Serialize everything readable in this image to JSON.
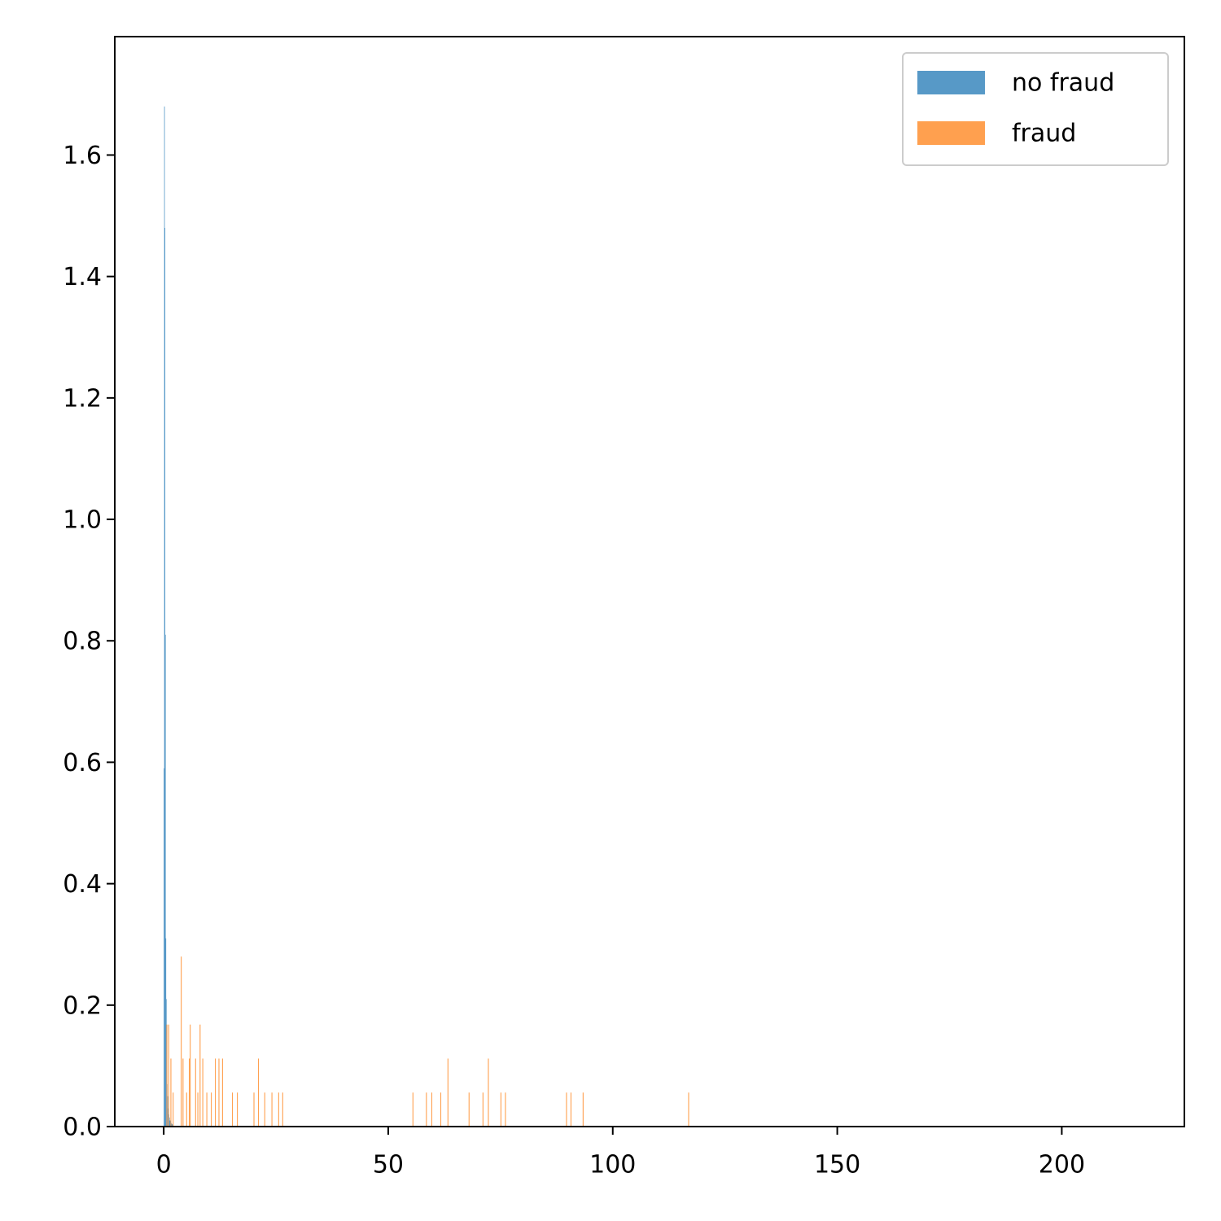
{
  "chart_data": {
    "type": "histogram",
    "series": [
      {
        "name": "no fraud",
        "color": "#5799c7",
        "bins": [
          0,
          0.1,
          0.2,
          0.3,
          0.4,
          0.5,
          0.6,
          0.7,
          0.8,
          0.9,
          1.0,
          1.1,
          1.2,
          1.3,
          1.4,
          1.5,
          1.6,
          1.7,
          1.8,
          1.9,
          2.0
        ],
        "values": [
          0.59,
          1.68,
          1.48,
          0.81,
          0.31,
          0.21,
          0.12,
          0.07,
          0.05,
          0.03,
          0.02,
          0.02,
          0.015,
          0.01,
          0.01,
          0.008,
          0.006,
          0.005,
          0.004,
          0.003
        ]
      },
      {
        "name": "fraud",
        "color": "#ffa04f",
        "bins": [
          0.6,
          0.8,
          1.0,
          1.2,
          1.5,
          1.7,
          2.0,
          2.2,
          3.8,
          4.0,
          4.2,
          4.4,
          5.0,
          5.2,
          5.6,
          5.8,
          6.0,
          7.0,
          7.2,
          7.5,
          7.7,
          8.0,
          8.2,
          8.6,
          8.8,
          9.5,
          9.7,
          10.5,
          10.7,
          11.4,
          11.6,
          12.2,
          12.4,
          13.0,
          13.2,
          15.2,
          15.4,
          16.3,
          16.5,
          20.0,
          20.2,
          21.0,
          21.2,
          22.4,
          22.6,
          24.0,
          24.2,
          25.5,
          25.7,
          26.4,
          26.6,
          55.4,
          55.6,
          58.4,
          58.6,
          59.6,
          59.8,
          61.6,
          61.8,
          63.2,
          63.4,
          67.9,
          68.1,
          71.0,
          71.2,
          72.2,
          72.4,
          75.0,
          75.2,
          76.0,
          76.2,
          89.6,
          89.8,
          90.6,
          90.8,
          93.3,
          93.5,
          116.8,
          117.0
        ],
        "values": [
          0.168,
          0,
          0.168,
          0,
          0.112,
          0,
          0.056,
          0,
          0.28,
          0,
          0.112,
          0,
          0.056,
          0,
          0.112,
          0.168,
          0,
          0.112,
          0,
          0.056,
          0,
          0.168,
          0,
          0.112,
          0,
          0.056,
          0,
          0.056,
          0,
          0.112,
          0,
          0.112,
          0,
          0.112,
          0,
          0.056,
          0,
          0.056,
          0,
          0.056,
          0,
          0.112,
          0,
          0.056,
          0,
          0.056,
          0,
          0.056,
          0,
          0.056,
          0,
          0.056,
          0,
          0.056,
          0,
          0.056,
          0,
          0.056,
          0,
          0.112,
          0,
          0.056,
          0,
          0.056,
          0,
          0.112,
          0,
          0.056,
          0,
          0.056,
          0,
          0.056,
          0,
          0.056,
          0,
          0.056,
          0,
          0.056
        ]
      }
    ],
    "xlim": [
      -10.9,
      227.3
    ],
    "ylim": [
      0,
      1.795
    ],
    "xticks": [
      0,
      50,
      100,
      150,
      200
    ],
    "yticks": [
      {
        "value": 0,
        "label": "0.0"
      },
      0.2,
      0.4,
      0.6,
      0.8,
      {
        "value": 1,
        "label": "1.0"
      },
      1.2,
      1.4,
      1.6
    ],
    "legend": "upper right"
  }
}
